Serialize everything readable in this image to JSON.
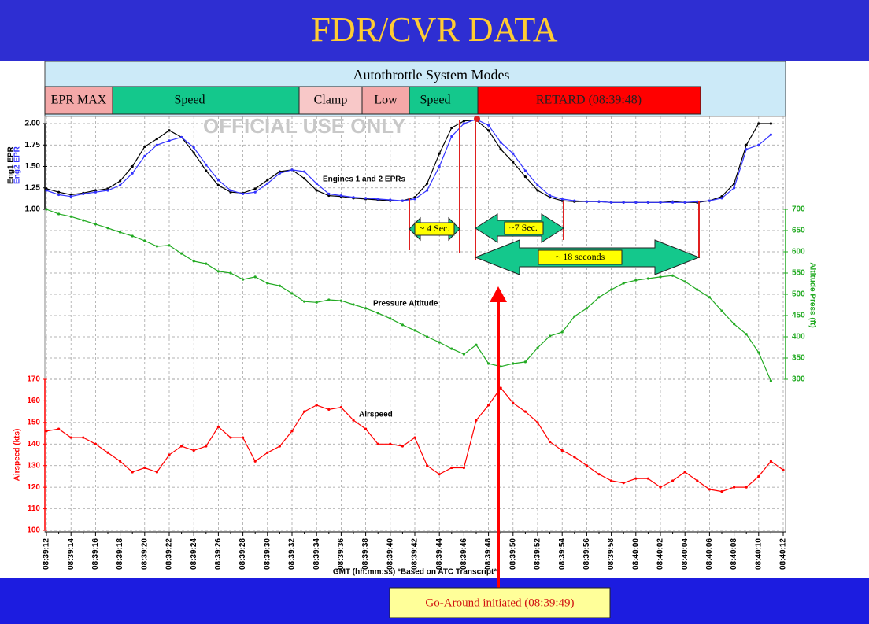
{
  "header": {
    "title": "FDR/CVR DATA"
  },
  "chart_data": {
    "type": "line",
    "mode_panel": {
      "title": "Autothrottle System Modes",
      "modes": [
        "EPR MAX",
        "Speed",
        "Clamp",
        "Low",
        "Speed",
        "RETARD (08:39:48)"
      ]
    },
    "x_label": "GMT (hh:mm:ss) *Based on ATC Transcript*",
    "categories": [
      "08:39:12",
      null,
      "08:39:14",
      null,
      "08:39:16",
      null,
      "08:39:18",
      null,
      "08:39:20",
      null,
      "08:39:22",
      null,
      "08:39:24",
      null,
      "08:39:26",
      null,
      "08:39:28",
      null,
      "08:39:30",
      null,
      "08:39:32",
      null,
      "08:39:34",
      null,
      "08:39:36",
      null,
      "08:39:38",
      null,
      "08:39:40",
      null,
      "08:39:42",
      null,
      "08:39:44",
      null,
      "08:39:46",
      null,
      "08:39:48",
      null,
      "08:39:50",
      null,
      "08:39:52",
      null,
      "08:39:54",
      null,
      "08:39:56",
      null,
      "08:39:58",
      null,
      "08:40:00",
      null,
      "08:40:02",
      null,
      "08:40:04",
      null,
      "08:40:06",
      null,
      "08:40:08",
      null,
      "08:40:10",
      null,
      "08:40:12"
    ],
    "ylim": [
      1,
      2
    ],
    "yticks": [
      {
        "value": 1,
        "label": "1.00"
      },
      {
        "value": 1.25,
        "label": "1.25"
      },
      {
        "value": 1.5,
        "label": "1.50"
      },
      {
        "value": 1.75,
        "label": "1.75"
      },
      {
        "value": 2,
        "label": "2.00"
      }
    ],
    "y2lim": [
      300,
      700
    ],
    "y2ticks": [
      300,
      350,
      400,
      450,
      500,
      550,
      600,
      650,
      700
    ],
    "y3lim": [
      100,
      170
    ],
    "y3ticks": [
      100,
      110,
      120,
      130,
      140,
      150,
      160,
      170
    ],
    "grid": true,
    "series": [
      {
        "name": "Eng1 EPR",
        "color": "#000000",
        "axis": "y",
        "values": [
          1.24,
          1.2,
          1.17,
          1.19,
          1.22,
          1.24,
          1.33,
          1.5,
          1.73,
          1.82,
          1.92,
          1.84,
          1.66,
          1.45,
          1.28,
          1.2,
          1.19,
          1.24,
          1.34,
          1.44,
          1.46,
          1.36,
          1.22,
          1.16,
          1.15,
          1.13,
          1.12,
          1.11,
          1.1,
          1.1,
          1.14,
          1.3,
          1.65,
          1.95,
          2.03,
          2.04,
          1.92,
          1.7,
          1.55,
          1.38,
          1.22,
          1.14,
          1.1,
          1.09,
          1.09,
          1.09,
          1.08,
          1.08,
          1.08,
          1.08,
          1.08,
          1.09,
          1.08,
          1.08,
          1.1,
          1.15,
          1.3,
          1.75,
          2.0,
          2.0,
          null
        ]
      },
      {
        "name": "Eng2 EPR",
        "color": "#3333ff",
        "axis": "y",
        "values": [
          1.22,
          1.17,
          1.15,
          1.18,
          1.2,
          1.22,
          1.28,
          1.42,
          1.62,
          1.75,
          1.8,
          1.84,
          1.72,
          1.52,
          1.34,
          1.22,
          1.18,
          1.2,
          1.3,
          1.42,
          1.46,
          1.44,
          1.3,
          1.18,
          1.16,
          1.14,
          1.13,
          1.12,
          1.11,
          1.1,
          1.12,
          1.22,
          1.5,
          1.85,
          2.0,
          2.05,
          1.98,
          1.78,
          1.65,
          1.45,
          1.28,
          1.16,
          1.12,
          1.1,
          1.09,
          1.09,
          1.08,
          1.08,
          1.08,
          1.08,
          1.08,
          1.08,
          1.08,
          1.09,
          1.1,
          1.13,
          1.25,
          1.7,
          1.75,
          1.87,
          null
        ]
      },
      {
        "name": "Altitude Press (ft)",
        "color": "#22aa22",
        "axis": "y2",
        "values": [
          700,
          689,
          683,
          674,
          665,
          656,
          646,
          637,
          626,
          613,
          615,
          596,
          578,
          572,
          554,
          550,
          535,
          541,
          526,
          520,
          502,
          483,
          481,
          487,
          485,
          476,
          467,
          456,
          443,
          428,
          415,
          400,
          387,
          372,
          359,
          381,
          337,
          330,
          337,
          341,
          374,
          402,
          411,
          448,
          467,
          493,
          511,
          526,
          533,
          537,
          541,
          544,
          530,
          511,
          493,
          461,
          430,
          406,
          363,
          296,
          null
        ]
      },
      {
        "name": "Airspeed (kts)",
        "color": "#ff0000",
        "axis": "y3",
        "values": [
          146,
          147,
          143,
          143,
          140,
          136,
          132,
          127,
          129,
          127,
          135,
          139,
          137,
          139,
          148,
          143,
          143,
          132,
          136,
          139,
          146,
          155,
          158,
          156,
          157,
          151,
          147,
          140,
          140,
          139,
          143,
          130,
          126,
          129,
          129,
          151,
          158,
          166,
          159,
          155,
          150,
          141,
          137,
          134,
          130,
          126,
          123,
          122,
          124,
          124,
          120,
          123,
          127,
          123,
          119,
          118,
          120,
          120,
          125,
          132,
          128
        ]
      }
    ],
    "annotations": [
      "Engines 1 and 2 EPRs",
      "Pressure Altitude",
      "Airspeed",
      "OFFICIAL USE ONLY",
      "~ 4 Sec.",
      "~7 Sec.",
      "~ 18 seconds",
      "Go-Around initiated (08:39:49)"
    ]
  }
}
